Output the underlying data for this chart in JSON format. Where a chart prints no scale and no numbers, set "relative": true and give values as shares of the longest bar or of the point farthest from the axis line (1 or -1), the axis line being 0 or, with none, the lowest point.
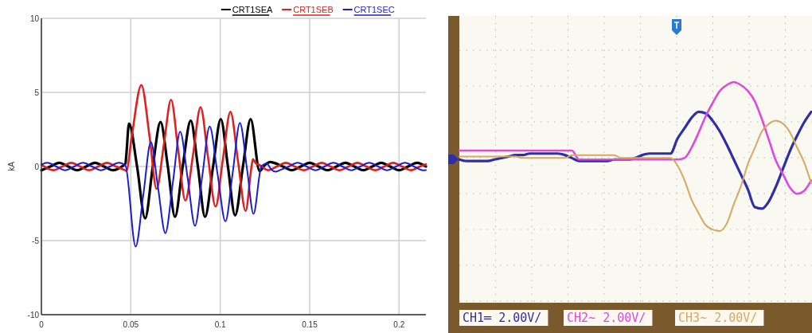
{
  "chart_data": [
    {
      "type": "line",
      "ylabel": "kA",
      "xlim": [
        0,
        0.215
      ],
      "ylim": [
        -10,
        10
      ],
      "xticks": [
        0,
        0.05,
        0.1,
        0.15,
        0.2
      ],
      "yticks": [
        -10,
        -5,
        0,
        5,
        10
      ],
      "grid": true,
      "legend": "top right",
      "series": [
        {
          "name": "CRT1SEA",
          "color": "#000000",
          "x": [
            0,
            0.005,
            0.01,
            0.015,
            0.02,
            0.025,
            0.03,
            0.035,
            0.04,
            0.045,
            0.047,
            0.0475,
            0.049,
            0.0535,
            0.058,
            0.0623,
            0.0666,
            0.0707,
            0.0747,
            0.079,
            0.0835,
            0.0875,
            0.0915,
            0.096,
            0.1003,
            0.1043,
            0.1083,
            0.1127,
            0.117,
            0.122,
            0.125,
            0.128,
            0.13,
            0.135,
            0.14,
            0.145,
            0.15,
            0.155,
            0.16,
            0.165,
            0.17,
            0.175,
            0.18,
            0.185,
            0.19,
            0.195,
            0.2,
            0.205,
            0.21,
            0.215
          ],
          "values": [
            -0.25,
            0,
            0.25,
            0,
            -0.25,
            0,
            0.25,
            0,
            -0.25,
            0,
            0.2,
            0.8,
            2.9,
            0,
            -3.5,
            0,
            3.0,
            0,
            -3.4,
            0,
            3.1,
            0,
            -3.4,
            0,
            3.2,
            0,
            -3.3,
            0,
            3.2,
            -0.3,
            0.1,
            0.3,
            0.25,
            0,
            -0.25,
            0,
            0.25,
            0,
            -0.25,
            0,
            0.25,
            0,
            -0.25,
            0,
            0.25,
            0,
            -0.25,
            0,
            0.25,
            0
          ]
        },
        {
          "name": "CRT1SEB",
          "color": "#e02020",
          "x": [
            0,
            0.0067,
            0.0117,
            0.0167,
            0.0217,
            0.0267,
            0.0317,
            0.0367,
            0.0417,
            0.0467,
            0.0475,
            0.0505,
            0.0559,
            0.0605,
            0.0644,
            0.0685,
            0.0725,
            0.0765,
            0.0805,
            0.0848,
            0.089,
            0.0932,
            0.0974,
            0.1015,
            0.1057,
            0.11,
            0.1142,
            0.1175,
            0.1183,
            0.12,
            0.122,
            0.1267,
            0.1317,
            0.1367,
            0.1417,
            0.1467,
            0.1517,
            0.1567,
            0.1617,
            0.1667,
            0.1717,
            0.1767,
            0.1817,
            0.1867,
            0.1917,
            0.1967,
            0.2017,
            0.2067,
            0.2117,
            0.215
          ],
          "values": [
            0.13,
            -0.25,
            0,
            0.25,
            0,
            -0.25,
            0,
            0.25,
            0,
            -0.25,
            -0.3,
            2.0,
            5.5,
            2.0,
            -1.5,
            1.5,
            4.5,
            1.1,
            -2.3,
            0.8,
            4.0,
            0.6,
            -2.7,
            0.5,
            3.7,
            0.3,
            -3.0,
            0,
            0.5,
            0.2,
            0.1,
            -0.25,
            0,
            0.25,
            0,
            -0.25,
            0,
            0.25,
            0,
            -0.25,
            0,
            0.25,
            0,
            -0.25,
            0,
            0.25,
            0,
            -0.25,
            0,
            0.15
          ]
        },
        {
          "name": "CRT1SEC",
          "color": "#1c1cd8",
          "x": [
            0,
            0.0033,
            0.0083,
            0.0133,
            0.0183,
            0.0233,
            0.0283,
            0.0333,
            0.0383,
            0.0433,
            0.047,
            0.0527,
            0.057,
            0.0612,
            0.0652,
            0.0693,
            0.0735,
            0.0776,
            0.0818,
            0.0859,
            0.09,
            0.0941,
            0.0985,
            0.1029,
            0.107,
            0.111,
            0.115,
            0.1186,
            0.123,
            0.126,
            0.1285,
            0.131,
            0.1333,
            0.1383,
            0.1433,
            0.1483,
            0.1533,
            0.1583,
            0.1633,
            0.1683,
            0.1733,
            0.1783,
            0.1833,
            0.1883,
            0.1933,
            0.1983,
            0.2033,
            0.2083,
            0.2133,
            0.215
          ],
          "values": [
            0.13,
            0.25,
            0,
            -0.25,
            0,
            0.25,
            0,
            -0.25,
            0,
            0.25,
            0.05,
            -5.4,
            -1.9,
            1.65,
            -1.4,
            -4.5,
            -1.1,
            2.35,
            -0.8,
            -4.0,
            -0.6,
            2.7,
            -0.5,
            -3.7,
            -0.4,
            2.95,
            -0.2,
            -3.2,
            0,
            0.2,
            -0.2,
            -0.35,
            -0.25,
            0,
            0.25,
            0,
            -0.25,
            0,
            0.25,
            0,
            -0.25,
            0,
            0.25,
            0,
            -0.25,
            0,
            0.25,
            0,
            -0.25,
            -0.24
          ]
        }
      ]
    },
    {
      "type": "line",
      "relative": true,
      "grid": true,
      "categories": [
        null,
        null,
        null,
        null,
        null,
        null,
        null,
        null,
        null,
        null,
        null,
        null,
        null,
        null,
        null,
        null,
        null,
        null,
        null,
        null,
        null,
        null,
        null,
        null,
        null,
        null,
        null,
        null,
        null,
        null,
        null,
        null,
        null,
        null,
        null,
        null,
        null,
        null,
        null,
        null,
        null,
        null,
        null,
        null,
        null,
        null,
        null,
        null,
        null,
        null,
        null
      ],
      "annotations": [
        "CH1═ 2.00V/",
        "CH2~ 2.00V/",
        "CH3~ 2.00V/"
      ],
      "series": [
        {
          "color": "#2e2ea8",
          "values": [
            0.48,
            0.47,
            0.47,
            0.47,
            0.47,
            0.48,
            0.49,
            0.5,
            0.51,
            0.51,
            0.52,
            0.52,
            0.52,
            0.52,
            0.52,
            0.51,
            0.49,
            0.47,
            0.47,
            0.47,
            0.47,
            0.47,
            0.48,
            0.48,
            0.48,
            0.49,
            0.51,
            0.52,
            0.52,
            0.52,
            0.52,
            0.62,
            0.69,
            0.76,
            0.8,
            0.79,
            0.74,
            0.67,
            0.58,
            0.48,
            0.38,
            0.28,
            0.16,
            0.15,
            0.2,
            0.3,
            0.42,
            0.54,
            0.64,
            0.73,
            0.8
          ]
        },
        {
          "color": "#e048e0",
          "values": [
            0.54,
            0.54,
            0.54,
            0.54,
            0.54,
            0.54,
            0.54,
            0.54,
            0.54,
            0.54,
            0.54,
            0.54,
            0.54,
            0.54,
            0.54,
            0.54,
            0.54,
            0.48,
            0.48,
            0.48,
            0.48,
            0.48,
            0.48,
            0.48,
            0.48,
            0.48,
            0.48,
            0.48,
            0.48,
            0.48,
            0.48,
            0.48,
            0.49,
            0.56,
            0.66,
            0.77,
            0.86,
            0.94,
            0.98,
            1.0,
            0.98,
            0.94,
            0.87,
            0.75,
            0.61,
            0.47,
            0.38,
            0.29,
            0.25,
            0.27,
            0.34
          ]
        },
        {
          "color": "#d8a860",
          "values": [
            0.5,
            0.5,
            0.5,
            0.5,
            0.5,
            0.5,
            0.5,
            0.5,
            0.5,
            0.49,
            0.49,
            0.49,
            0.49,
            0.49,
            0.49,
            0.49,
            0.51,
            0.51,
            0.51,
            0.51,
            0.51,
            0.51,
            0.51,
            0.49,
            0.49,
            0.49,
            0.49,
            0.49,
            0.49,
            0.49,
            0.49,
            0.44,
            0.34,
            0.21,
            0.12,
            0.04,
            0.01,
            0,
            0.05,
            0.18,
            0.3,
            0.45,
            0.56,
            0.67,
            0.72,
            0.74,
            0.72,
            0.66,
            0.56,
            0.46,
            0.32
          ]
        }
      ]
    }
  ]
}
